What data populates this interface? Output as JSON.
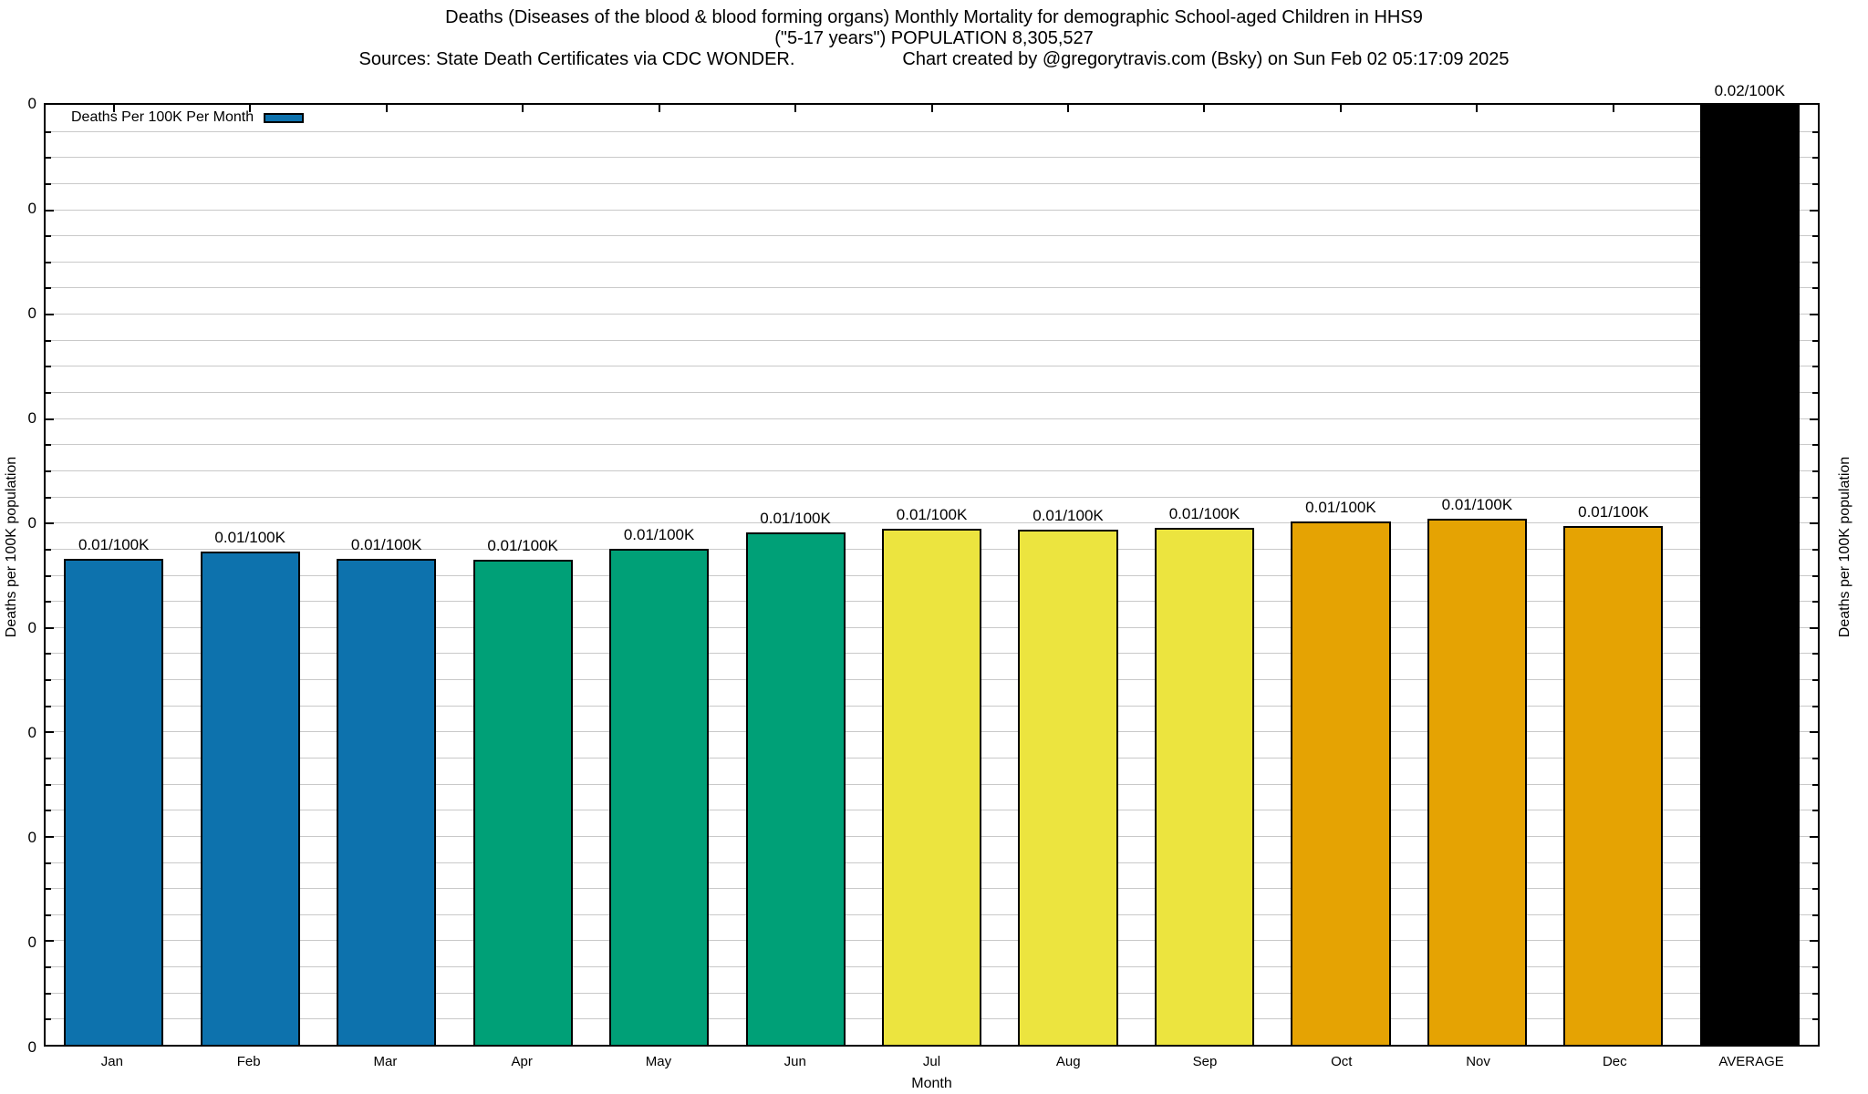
{
  "chart_data": {
    "type": "bar",
    "title": "Deaths (Diseases of the blood & blood forming organs) Monthly Mortality for demographic School-aged Children in HHS9",
    "subtitle": "(\"5-17 years\") POPULATION 8,305,527",
    "source_note": "Sources: State Death Certificates via CDC WONDER.",
    "credit_note": "Chart created by @gregorytravis.com (Bsky) on Sun Feb 02 05:17:09 2025",
    "xlabel": "Month",
    "ylabel_left": "Deaths per 100K population",
    "ylabel_right": "Deaths per 100K population",
    "legend": {
      "label": "Deaths Per 100K Per Month",
      "color": "#0d72ad"
    },
    "y_axis": {
      "tick_label": "0",
      "major_ticks": 10,
      "minor_divisions": 4,
      "grid": true
    },
    "categories": [
      "Jan",
      "Feb",
      "Mar",
      "Apr",
      "May",
      "Jun",
      "Jul",
      "Aug",
      "Sep",
      "Oct",
      "Nov",
      "Dec",
      "AVERAGE"
    ],
    "values": [
      0.01,
      0.01,
      0.01,
      0.01,
      0.01,
      0.01,
      0.01,
      0.01,
      0.01,
      0.01,
      0.01,
      0.01,
      0.02
    ],
    "value_labels": [
      "0.01/100K",
      "0.01/100K",
      "0.01/100K",
      "0.01/100K",
      "0.01/100K",
      "0.01/100K",
      "0.01/100K",
      "0.01/100K",
      "0.01/100K",
      "0.01/100K",
      "0.01/100K",
      "0.01/100K",
      "0.02/100K"
    ],
    "bar_height_pct": [
      51.7,
      52.5,
      51.7,
      51.6,
      52.8,
      54.5,
      54.9,
      54.8,
      55.0,
      55.7,
      56.0,
      55.2,
      100
    ],
    "bar_colors": [
      "#0d72ad",
      "#0d72ad",
      "#0d72ad",
      "#00a077",
      "#00a077",
      "#00a077",
      "#ece43f",
      "#ece43f",
      "#ece43f",
      "#e5a303",
      "#e5a303",
      "#e5a303",
      "#000000"
    ],
    "colors": {
      "grid": "#c9c9c9",
      "axis": "#000000",
      "background": "#ffffff"
    },
    "legend_position": "top-left",
    "ylim_note": "all y-axis tick labels display as 0"
  }
}
